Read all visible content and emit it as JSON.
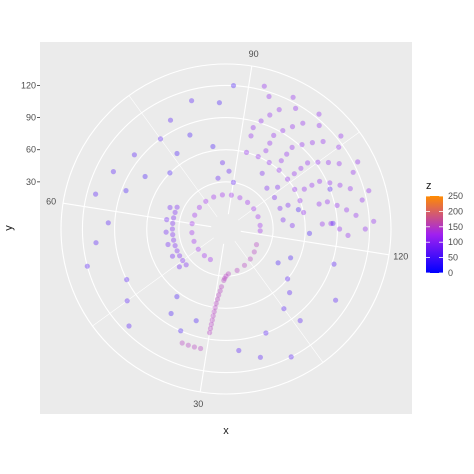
{
  "chart_data": {
    "type": "scatter",
    "coord": "polar",
    "xlabel": "x",
    "ylabel": "y",
    "theta_ticks": [
      "30",
      "60",
      "90",
      "120"
    ],
    "r_ticks": [
      "30",
      "60",
      "90",
      "120"
    ],
    "theta_period": 120,
    "r_max": 140,
    "color_scale": {
      "title": "z",
      "low": "#0000ff",
      "mid": "#a020f0",
      "high": "#ff8c00",
      "domain": [
        0,
        250
      ],
      "breaks": [
        "0",
        "50",
        "100",
        "150",
        "200",
        "250"
      ]
    },
    "point_alpha": 0.35,
    "grid": true,
    "legend_position": "right",
    "series": [
      {
        "points": [
          [
            6,
            18,
            150
          ],
          [
            10,
            20,
            150
          ],
          [
            14,
            22,
            150
          ],
          [
            18,
            24,
            150
          ],
          [
            22,
            26,
            150
          ],
          [
            26,
            28,
            150
          ],
          [
            27,
            30,
            150
          ],
          [
            27.5,
            32,
            150
          ],
          [
            27.8,
            34,
            150
          ],
          [
            28.5,
            40,
            150
          ],
          [
            28.8,
            44,
            150
          ],
          [
            29.1,
            48,
            150
          ],
          [
            29.3,
            52,
            150
          ],
          [
            29.5,
            56,
            150
          ],
          [
            29.6,
            60,
            150
          ],
          [
            29.7,
            64,
            150
          ],
          [
            29.8,
            68,
            150
          ],
          [
            29.85,
            72,
            150
          ],
          [
            29.9,
            76,
            150
          ],
          [
            29.95,
            80,
            150
          ],
          [
            30,
            84,
            150
          ],
          [
            31,
            100,
            150
          ],
          [
            32,
            100,
            150
          ],
          [
            33,
            100,
            150
          ],
          [
            34,
            100,
            150
          ],
          [
            36,
            18,
            120
          ],
          [
            40,
            18,
            120
          ],
          [
            45,
            18,
            120
          ],
          [
            50,
            18,
            120
          ],
          [
            55,
            18,
            120
          ],
          [
            60,
            18,
            120
          ],
          [
            65,
            18,
            120
          ],
          [
            70,
            18,
            120
          ],
          [
            75,
            18,
            120
          ],
          [
            80,
            18,
            120
          ],
          [
            85,
            18,
            120
          ],
          [
            90,
            18,
            120
          ],
          [
            95,
            18,
            120
          ],
          [
            100,
            18,
            120
          ],
          [
            105,
            18,
            120
          ],
          [
            110,
            18,
            120
          ],
          [
            115,
            18,
            120
          ],
          [
            118,
            18,
            120
          ],
          [
            92,
            60,
            110
          ],
          [
            95,
            60,
            110
          ],
          [
            98,
            60,
            110
          ],
          [
            101,
            60,
            110
          ],
          [
            104,
            60,
            110
          ],
          [
            107,
            60,
            110
          ],
          [
            110,
            60,
            110
          ],
          [
            113,
            60,
            110
          ],
          [
            96,
            68,
            110
          ],
          [
            100,
            68,
            110
          ],
          [
            104,
            68,
            110
          ],
          [
            108,
            68,
            110
          ],
          [
            92,
            76,
            110
          ],
          [
            96,
            76,
            110
          ],
          [
            100,
            76,
            110
          ],
          [
            104,
            76,
            110
          ],
          [
            108,
            76,
            110
          ],
          [
            112,
            76,
            110
          ],
          [
            116,
            76,
            110
          ],
          [
            92,
            84,
            110
          ],
          [
            96,
            84,
            110
          ],
          [
            100,
            84,
            110
          ],
          [
            104,
            84,
            110
          ],
          [
            108,
            84,
            110
          ],
          [
            112,
            84,
            110
          ],
          [
            116,
            84,
            110
          ],
          [
            93,
            92,
            110
          ],
          [
            97,
            92,
            110
          ],
          [
            101,
            92,
            110
          ],
          [
            105,
            92,
            110
          ],
          [
            109,
            92,
            110
          ],
          [
            113,
            92,
            110
          ],
          [
            117,
            92,
            110
          ],
          [
            94,
            100,
            110
          ],
          [
            98,
            100,
            110
          ],
          [
            102,
            100,
            110
          ],
          [
            106,
            100,
            110
          ],
          [
            110,
            100,
            110
          ],
          [
            114,
            100,
            110
          ],
          [
            118,
            100,
            110
          ],
          [
            95,
            108,
            110
          ],
          [
            99,
            108,
            110
          ],
          [
            103,
            108,
            110
          ],
          [
            107,
            108,
            110
          ],
          [
            111,
            108,
            110
          ],
          [
            115,
            108,
            110
          ],
          [
            93,
            116,
            110
          ],
          [
            97,
            116,
            110
          ],
          [
            101,
            116,
            110
          ],
          [
            105,
            116,
            110
          ],
          [
            109,
            116,
            110
          ],
          [
            113,
            116,
            110
          ],
          [
            117,
            116,
            110
          ],
          [
            92,
            124,
            110
          ],
          [
            96,
            124,
            110
          ],
          [
            100,
            124,
            110
          ],
          [
            104,
            124,
            110
          ],
          [
            108,
            124,
            110
          ],
          [
            112,
            124,
            110
          ],
          [
            116,
            124,
            110
          ],
          [
            102,
            40,
            90
          ],
          [
            106,
            40,
            90
          ],
          [
            110,
            40,
            90
          ],
          [
            114,
            40,
            90
          ],
          [
            98,
            48,
            90
          ],
          [
            104,
            48,
            90
          ],
          [
            110,
            48,
            90
          ],
          [
            116,
            48,
            90
          ],
          [
            43,
            36,
            90
          ],
          [
            45,
            36,
            90
          ],
          [
            47,
            36,
            90
          ],
          [
            49,
            36,
            90
          ],
          [
            51,
            36,
            90
          ],
          [
            53,
            36,
            90
          ],
          [
            55,
            36,
            90
          ],
          [
            57,
            36,
            90
          ],
          [
            59,
            36,
            90
          ],
          [
            61,
            36,
            90
          ],
          [
            63,
            36,
            90
          ],
          [
            65,
            36,
            90
          ],
          [
            44,
            42,
            80
          ],
          [
            48,
            42,
            80
          ],
          [
            52,
            42,
            80
          ],
          [
            56,
            42,
            80
          ],
          [
            60,
            42,
            80
          ],
          [
            64,
            42,
            80
          ],
          [
            10,
            60,
            60
          ],
          [
            12,
            70,
            60
          ],
          [
            15,
            78,
            60
          ],
          [
            20,
            90,
            60
          ],
          [
            22,
            110,
            60
          ],
          [
            25,
            100,
            60
          ],
          [
            14,
            96,
            60
          ],
          [
            18,
            120,
            60
          ],
          [
            8,
            108,
            60
          ],
          [
            3,
            92,
            60
          ],
          [
            116,
            86,
            60
          ],
          [
            110,
            90,
            60
          ],
          [
            112,
            56,
            50
          ],
          [
            118,
            64,
            50
          ],
          [
            5,
            52,
            50
          ],
          [
            8,
            44,
            50
          ],
          [
            75,
            90,
            60
          ],
          [
            78,
            100,
            60
          ],
          [
            82,
            110,
            60
          ],
          [
            70,
            96,
            60
          ],
          [
            66,
            104,
            60
          ],
          [
            62,
            112,
            60
          ],
          [
            58,
            96,
            60
          ],
          [
            55,
            108,
            60
          ],
          [
            52,
            120,
            60
          ],
          [
            48,
            90,
            60
          ],
          [
            45,
            100,
            60
          ],
          [
            42,
            114,
            60
          ],
          [
            72,
            60,
            50
          ],
          [
            76,
            70,
            50
          ],
          [
            80,
            80,
            50
          ],
          [
            84,
            64,
            50
          ],
          [
            68,
            76,
            50
          ],
          [
            64,
            86,
            50
          ],
          [
            88,
            120,
            50
          ],
          [
            86,
            104,
            50
          ],
          [
            38,
            80,
            50
          ],
          [
            35,
            90,
            50
          ],
          [
            33,
            76,
            50
          ],
          [
            39,
            64,
            50
          ],
          [
            88,
            40,
            70
          ],
          [
            86,
            48,
            70
          ],
          [
            90,
            30,
            70
          ],
          [
            84,
            34,
            70
          ]
        ]
      }
    ]
  }
}
